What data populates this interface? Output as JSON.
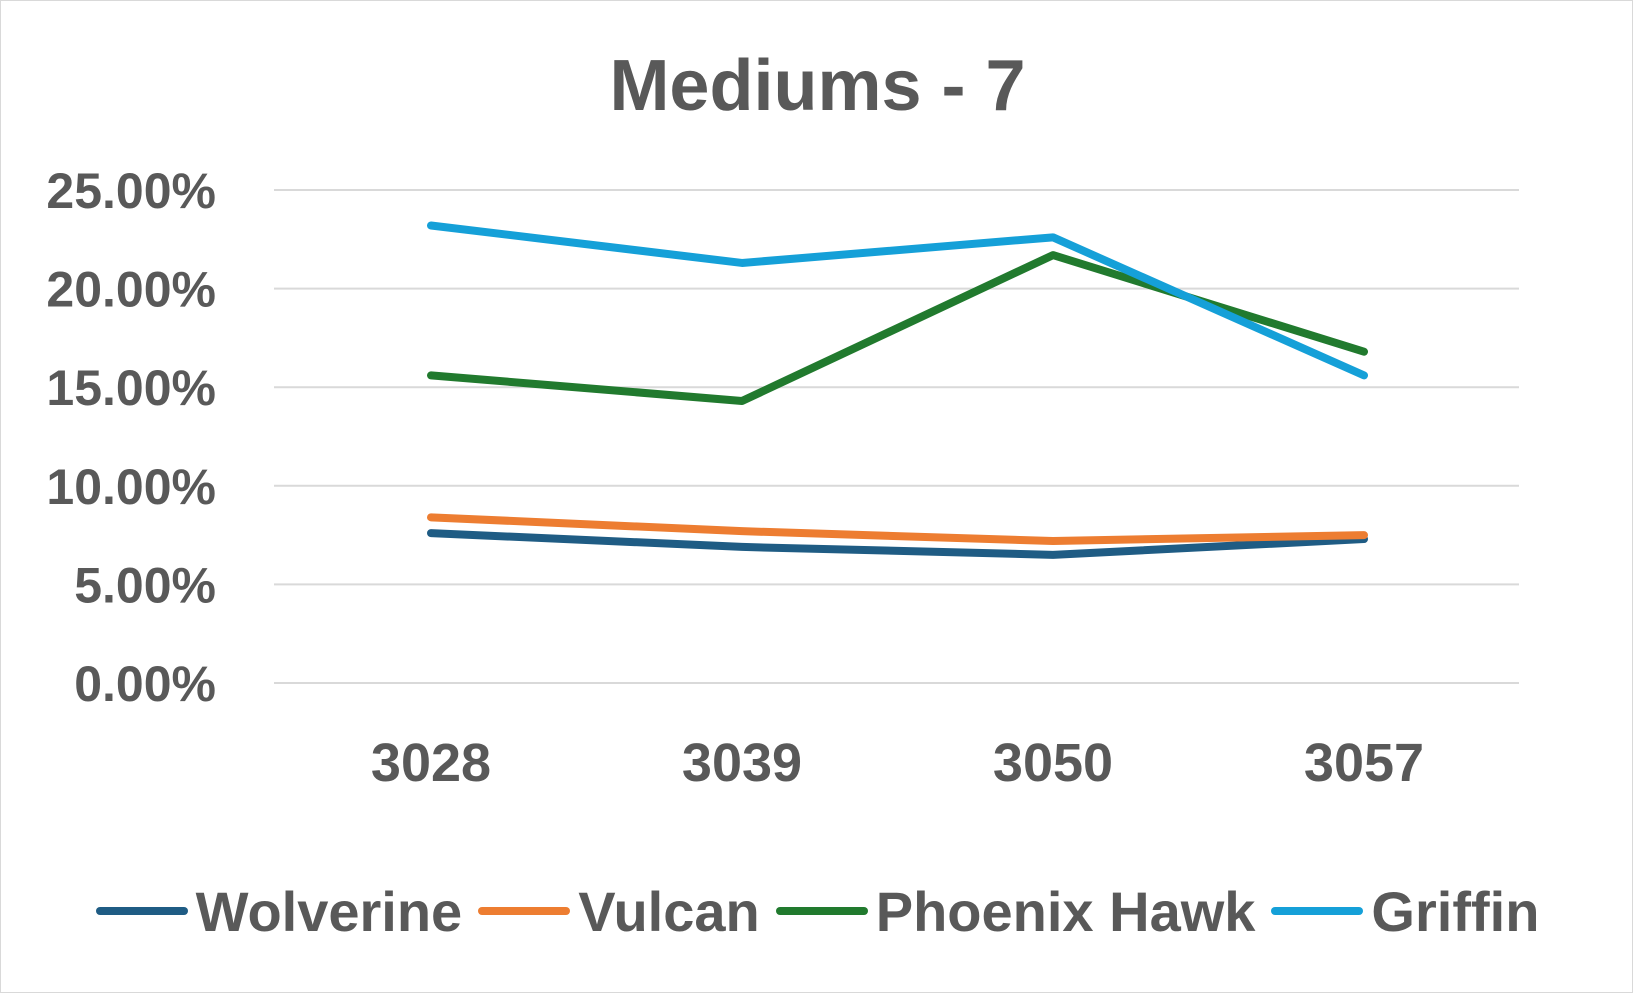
{
  "chart_data": {
    "type": "line",
    "title": "Mediums - 7",
    "xlabel": "",
    "ylabel": "",
    "categories": [
      "3028",
      "3039",
      "3050",
      "3057"
    ],
    "y_ticks": [
      "0.00%",
      "5.00%",
      "10.00%",
      "15.00%",
      "20.00%",
      "25.00%"
    ],
    "ylim": [
      0,
      25
    ],
    "y_unit": "%",
    "grid": true,
    "legend_position": "bottom",
    "series": [
      {
        "name": "Wolverine",
        "color": "#1f5c84",
        "values": [
          7.6,
          6.9,
          6.5,
          7.3
        ]
      },
      {
        "name": "Vulcan",
        "color": "#ed7d31",
        "values": [
          8.4,
          7.7,
          7.2,
          7.5
        ]
      },
      {
        "name": "Phoenix Hawk",
        "color": "#217a2e",
        "values": [
          15.6,
          14.3,
          21.7,
          16.8
        ]
      },
      {
        "name": "Griffin",
        "color": "#15a0d8",
        "values": [
          23.2,
          21.3,
          22.6,
          15.6
        ]
      }
    ]
  }
}
